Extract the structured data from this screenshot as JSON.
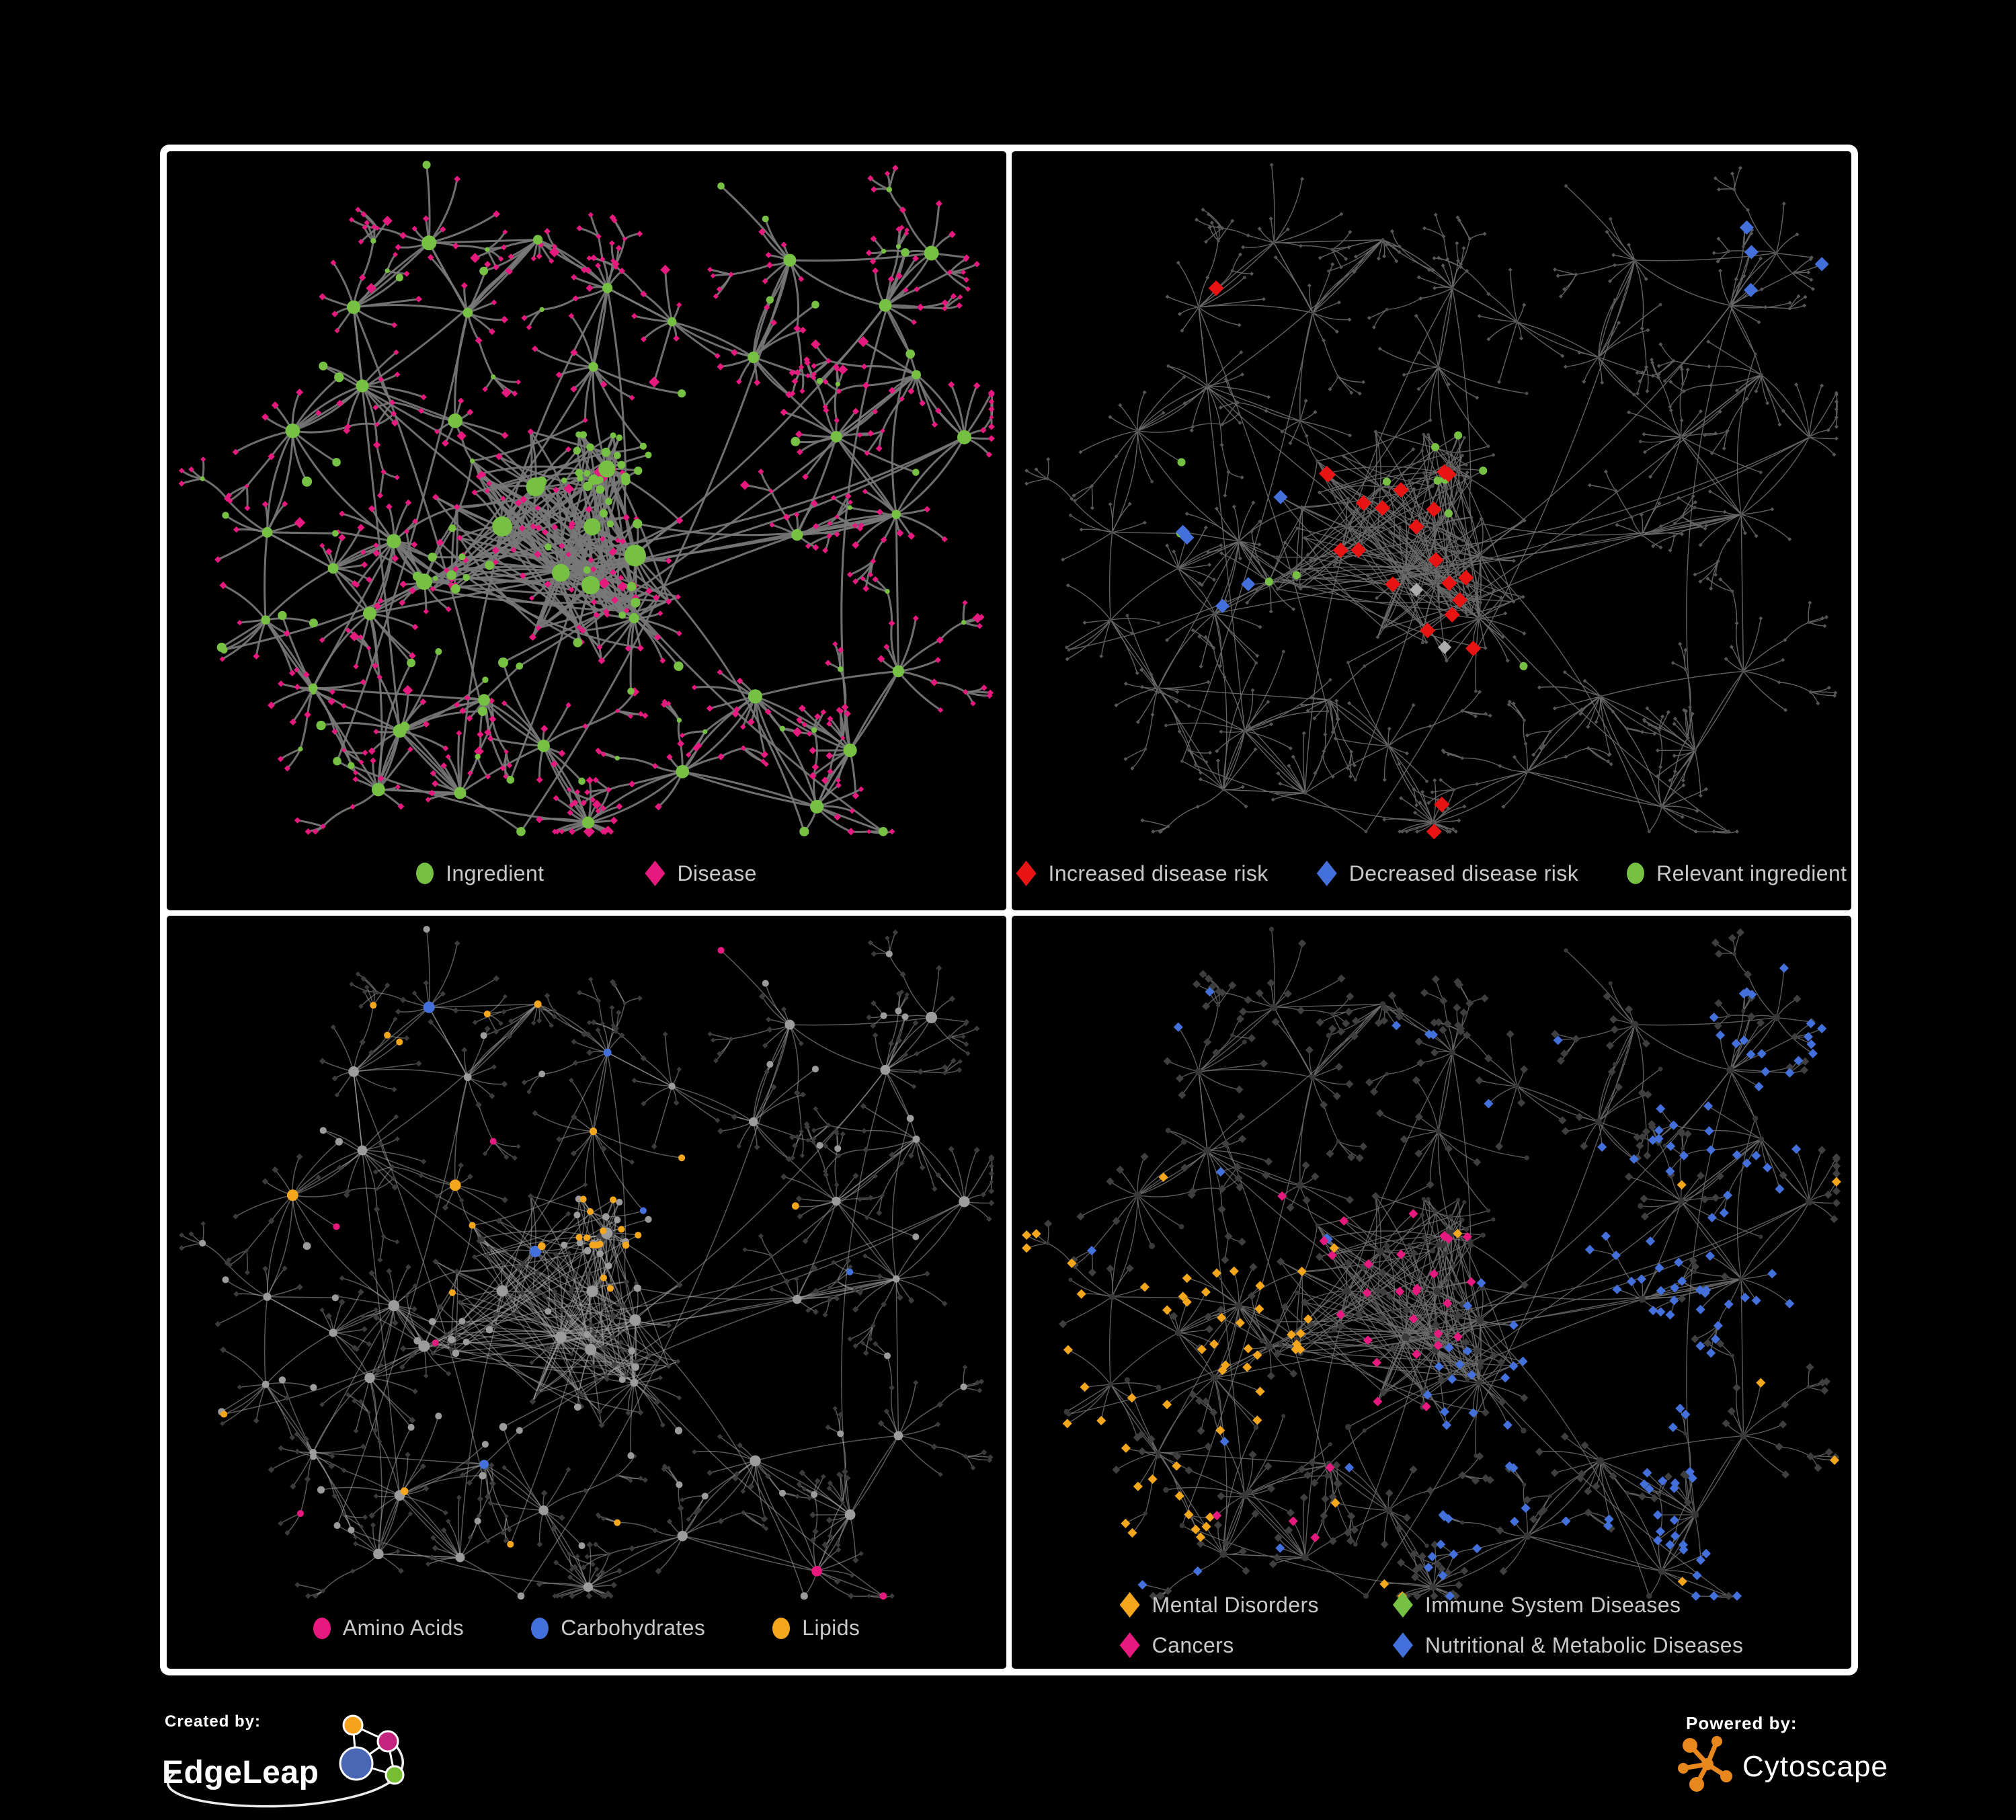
{
  "page": {
    "background": "#000000",
    "frame_background": "#FFFFFF"
  },
  "colors": {
    "green": "#76C043",
    "pink": "#E6197F",
    "red": "#E81414",
    "blue": "#4470DC",
    "orange": "#F4A71D",
    "gray_light": "#ABABAB",
    "gray_mid": "#9C9C9C",
    "gray_dark": "#3C3C3C",
    "legend_text": "#C9C9C9",
    "edge_p1": "#787878",
    "edge_p2": "#6C6C6C",
    "edge_p3": "#A2A2A2",
    "edge_p4": "#6C6C6C"
  },
  "network": {
    "seed": 1337
  },
  "panels": [
    {
      "id": "p1",
      "name": "ingredient-disease-network",
      "legend": [
        {
          "shape": "circle",
          "color": "green",
          "label": "Ingredient"
        },
        {
          "shape": "diamond",
          "color": "pink",
          "label": "Disease"
        }
      ]
    },
    {
      "id": "p2",
      "name": "disease-risk-network",
      "legend": [
        {
          "shape": "diamond",
          "color": "red",
          "label": "Increased disease risk"
        },
        {
          "shape": "diamond",
          "color": "blue",
          "label": "Decreased disease risk"
        },
        {
          "shape": "circle",
          "color": "green",
          "label": "Relevant ingredient"
        }
      ]
    },
    {
      "id": "p3",
      "name": "nutrient-category-network",
      "legend": [
        {
          "shape": "circle",
          "color": "pink",
          "label": "Amino Acids"
        },
        {
          "shape": "circle",
          "color": "blue",
          "label": "Carbohydrates"
        },
        {
          "shape": "circle",
          "color": "orange",
          "label": "Lipids"
        }
      ]
    },
    {
      "id": "p4",
      "name": "disease-category-network",
      "legend": [
        {
          "shape": "diamond",
          "color": "orange",
          "label": "Mental Disorders"
        },
        {
          "shape": "diamond",
          "color": "green",
          "label": "Immune System Diseases"
        },
        {
          "shape": "diamond",
          "color": "pink",
          "label": "Cancers"
        },
        {
          "shape": "diamond",
          "color": "blue",
          "label": "Nutritional & Metabolic Diseases"
        }
      ]
    }
  ],
  "footer": {
    "created_by": {
      "label": "Created by:",
      "brand": "EdgeLeap"
    },
    "powered_by": {
      "label": "Powered by:",
      "brand": "Cytoscape",
      "brand_color": "#E8871E"
    }
  }
}
